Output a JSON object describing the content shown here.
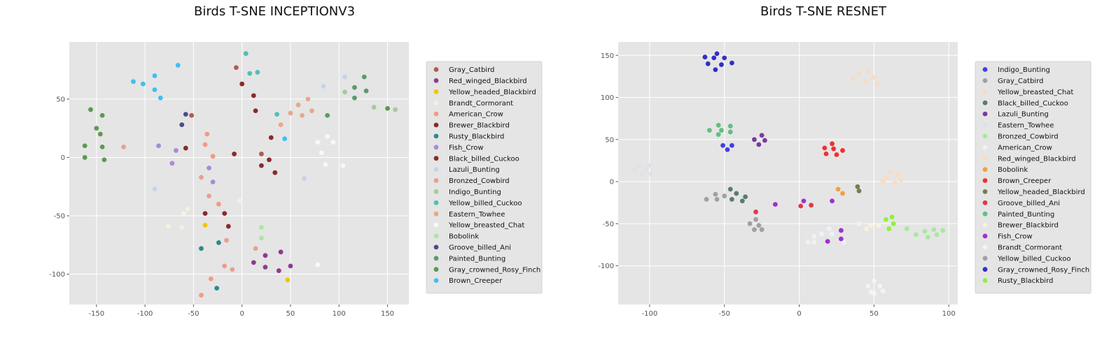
{
  "chart_data": [
    {
      "type": "scatter",
      "title": "Birds T-SNE INCEPTIONV3",
      "xlabel": "",
      "ylabel": "",
      "xlim": [
        -178,
        172
      ],
      "ylim": [
        -126,
        99
      ],
      "xticks": [
        "-150",
        "-100",
        "-50",
        "0",
        "50",
        "100",
        "150"
      ],
      "xtick_values": [
        -150,
        -100,
        -50,
        0,
        50,
        100,
        150
      ],
      "yticks": [
        "-100",
        "-50",
        "0",
        "50"
      ],
      "ytick_values": [
        -100,
        -50,
        0,
        50
      ],
      "grid": true,
      "legend_position": "right",
      "series": [
        {
          "name": "Gray_Catbird",
          "color": "#b35a4f",
          "points": [
            [
              -52,
              36
            ],
            [
              20,
              3
            ],
            [
              -6,
              77
            ]
          ]
        },
        {
          "name": "Red_winged_Blackbird",
          "color": "#8e3a8e",
          "points": [
            [
              12,
              -90
            ],
            [
              24,
              -84
            ],
            [
              40,
              -81
            ],
            [
              50,
              -93
            ],
            [
              38,
              -97
            ],
            [
              24,
              -94
            ]
          ]
        },
        {
          "name": "Yellow_headed_Blackbird",
          "color": "#f2c500",
          "points": [
            [
              -38,
              -58
            ],
            [
              47,
              -105
            ]
          ]
        },
        {
          "name": "Brandt_Cormorant",
          "color": "#f5f0e0",
          "points": [
            [
              -60,
              -48
            ],
            [
              -76,
              -59
            ],
            [
              -56,
              -44
            ],
            [
              -62,
              -60
            ],
            [
              -2,
              -37
            ]
          ]
        },
        {
          "name": "American_Crow",
          "color": "#f29a85",
          "points": [
            [
              -36,
              20
            ],
            [
              -38,
              11
            ],
            [
              -30,
              1
            ],
            [
              -24,
              -40
            ],
            [
              -18,
              -93
            ],
            [
              -42,
              -118
            ],
            [
              -32,
              -104
            ]
          ]
        },
        {
          "name": "Brewer_Blackbird",
          "color": "#8b2a2a",
          "points": [
            [
              -38,
              -48
            ],
            [
              -18,
              -48
            ],
            [
              -14,
              -59
            ],
            [
              -8,
              3
            ],
            [
              14,
              40
            ],
            [
              20,
              -7
            ],
            [
              28,
              -2
            ],
            [
              30,
              17
            ],
            [
              34,
              -13
            ]
          ]
        },
        {
          "name": "Rusty_Blackbird",
          "color": "#2c8a8a",
          "points": [
            [
              -42,
              -78
            ],
            [
              -24,
              -73
            ],
            [
              -26,
              -112
            ]
          ]
        },
        {
          "name": "Fish_Crow",
          "color": "#a88ad8",
          "points": [
            [
              -86,
              10
            ],
            [
              -68,
              6
            ],
            [
              -72,
              -5
            ],
            [
              -34,
              -9
            ],
            [
              -30,
              -21
            ]
          ]
        },
        {
          "name": "Black_billed_Cuckoo",
          "color": "#8b2a2a",
          "points": [
            [
              -58,
              8
            ],
            [
              0,
              63
            ],
            [
              12,
              53
            ]
          ]
        },
        {
          "name": "Lazuli_Bunting",
          "color": "#c5d4e8",
          "points": [
            [
              -90,
              -27
            ],
            [
              64,
              -18
            ],
            [
              84,
              61
            ],
            [
              106,
              69
            ]
          ]
        },
        {
          "name": "Bronzed_Cowbird",
          "color": "#e8a090",
          "points": [
            [
              -122,
              9
            ],
            [
              -42,
              -17
            ],
            [
              -34,
              -33
            ],
            [
              -16,
              -71
            ],
            [
              -10,
              -96
            ],
            [
              14,
              -78
            ]
          ]
        },
        {
          "name": "Indigo_Bunting",
          "color": "#a8c8a0",
          "points": [
            [
              106,
              56
            ],
            [
              136,
              43
            ],
            [
              158,
              41
            ]
          ]
        },
        {
          "name": "Yellow_billed_Cuckoo",
          "color": "#50c0b8",
          "points": [
            [
              4,
              89
            ],
            [
              8,
              72
            ],
            [
              16,
              73
            ],
            [
              36,
              37
            ]
          ]
        },
        {
          "name": "Eastern_Towhee",
          "color": "#e8a888",
          "points": [
            [
              40,
              28
            ],
            [
              50,
              38
            ],
            [
              58,
              45
            ],
            [
              62,
              36
            ],
            [
              68,
              50
            ],
            [
              72,
              40
            ]
          ]
        },
        {
          "name": "Yellow_breasted_Chat",
          "color": "#f8f8f8",
          "points": [
            [
              78,
              13
            ],
            [
              82,
              4
            ],
            [
              88,
              18
            ],
            [
              86,
              -6
            ],
            [
              94,
              13
            ],
            [
              104,
              -7
            ],
            [
              78,
              -92
            ]
          ]
        },
        {
          "name": "Bobolink",
          "color": "#a8e8a0",
          "points": [
            [
              20,
              -60
            ],
            [
              20,
              -69
            ]
          ]
        },
        {
          "name": "Groove_billed_Ani",
          "color": "#4b4b8a",
          "points": [
            [
              -62,
              28
            ],
            [
              -58,
              37
            ]
          ]
        },
        {
          "name": "Painted_Bunting",
          "color": "#5a9a70",
          "points": [
            [
              88,
              36
            ],
            [
              116,
              51
            ],
            [
              116,
              60
            ],
            [
              126,
              69
            ],
            [
              128,
              57
            ]
          ]
        },
        {
          "name": "Gray_crowned_Rosy_Finch",
          "color": "#5a9a50",
          "points": [
            [
              -156,
              41
            ],
            [
              -150,
              25
            ],
            [
              -146,
              20
            ],
            [
              -144,
              9
            ],
            [
              -144,
              36
            ],
            [
              -142,
              -2
            ],
            [
              -162,
              10
            ],
            [
              -162,
              0
            ],
            [
              150,
              42
            ]
          ]
        },
        {
          "name": "Brown_Creeper",
          "color": "#40c0f0",
          "points": [
            [
              -112,
              65
            ],
            [
              -102,
              63
            ],
            [
              -90,
              70
            ],
            [
              -90,
              58
            ],
            [
              -84,
              51
            ],
            [
              -66,
              79
            ],
            [
              44,
              16
            ]
          ]
        }
      ]
    },
    {
      "type": "scatter",
      "title": "Birds T-SNE RESNET",
      "xlabel": "",
      "ylabel": "",
      "xlim": [
        -121,
        106
      ],
      "ylim": [
        -146,
        166
      ],
      "xticks": [
        "-100",
        "-50",
        "0",
        "50",
        "100"
      ],
      "xtick_values": [
        -100,
        -50,
        0,
        50,
        100
      ],
      "yticks": [
        "-100",
        "-50",
        "0",
        "50",
        "100",
        "150"
      ],
      "ytick_values": [
        -100,
        -50,
        0,
        50,
        100,
        150
      ],
      "grid": true,
      "legend_position": "right",
      "series": [
        {
          "name": "Indigo_Bunting",
          "color": "#4040e0",
          "points": [
            [
              -51,
              43
            ],
            [
              -48,
              38
            ],
            [
              -45,
              43
            ]
          ]
        },
        {
          "name": "Gray_Catbird",
          "color": "#a0a0a0",
          "points": [
            [
              -62,
              -21
            ],
            [
              -56,
              -15
            ],
            [
              -55,
              -21
            ],
            [
              -50,
              -17
            ],
            [
              -33,
              -50
            ],
            [
              -30,
              -57
            ],
            [
              -29,
              -45
            ],
            [
              -27,
              -52
            ],
            [
              -25,
              -57
            ]
          ]
        },
        {
          "name": "Yellow_breasted_Chat",
          "color": "#f8dcc0",
          "points": [
            [
              36,
              122
            ],
            [
              40,
              128
            ],
            [
              44,
              119
            ],
            [
              46,
              131
            ],
            [
              50,
              124
            ],
            [
              52,
              116
            ]
          ]
        },
        {
          "name": "Black_billed_Cuckoo",
          "color": "#5a7a70",
          "points": [
            [
              -46,
              -9
            ],
            [
              -45,
              -21
            ],
            [
              -42,
              -14
            ],
            [
              -38,
              -23
            ],
            [
              -36,
              -18
            ]
          ]
        },
        {
          "name": "Lazuli_Bunting",
          "color": "#7a3aa0",
          "points": [
            [
              -30,
              50
            ],
            [
              -27,
              44
            ],
            [
              -25,
              55
            ],
            [
              -23,
              49
            ]
          ]
        },
        {
          "name": "Eastern_Towhee",
          "color": "#e0e0e8",
          "points": [
            [
              -110,
              14
            ],
            [
              -107,
              19
            ],
            [
              -105,
              9
            ],
            [
              -102,
              14
            ],
            [
              -100,
              19
            ],
            [
              -99,
              9
            ]
          ]
        },
        {
          "name": "Bronzed_Cowbird",
          "color": "#a8e8a0",
          "points": [
            [
              72,
              -56
            ],
            [
              78,
              -63
            ],
            [
              84,
              -59
            ],
            [
              86,
              -66
            ],
            [
              90,
              -57
            ],
            [
              92,
              -63
            ],
            [
              96,
              -58
            ]
          ]
        },
        {
          "name": "American_Crow",
          "color": "#f0f0f8",
          "points": [
            [
              6,
              -72
            ],
            [
              10,
              -65
            ],
            [
              10,
              -72
            ],
            [
              15,
              -62
            ],
            [
              20,
              -56
            ],
            [
              22,
              -62
            ],
            [
              30,
              -72
            ]
          ]
        },
        {
          "name": "Red_winged_Blackbird",
          "color": "#fadcc0",
          "points": [
            [
              56,
              0
            ],
            [
              58,
              5
            ],
            [
              61,
              12
            ],
            [
              64,
              -1
            ],
            [
              66,
              8
            ],
            [
              68,
              2
            ]
          ]
        },
        {
          "name": "Bobolink",
          "color": "#f0a040",
          "points": [
            [
              26,
              -9
            ],
            [
              29,
              -14
            ]
          ]
        },
        {
          "name": "Brown_Creeper",
          "color": "#f03030",
          "points": [
            [
              17,
              40
            ],
            [
              18,
              33
            ],
            [
              22,
              45
            ],
            [
              23,
              39
            ],
            [
              25,
              32
            ],
            [
              29,
              37
            ]
          ]
        },
        {
          "name": "Yellow_headed_Blackbird",
          "color": "#708050",
          "points": [
            [
              39,
              -6
            ],
            [
              40,
              -11
            ]
          ]
        },
        {
          "name": "Groove_billed_Ani",
          "color": "#e03850",
          "points": [
            [
              -29,
              -36
            ],
            [
              1,
              -29
            ],
            [
              8,
              -28
            ]
          ]
        },
        {
          "name": "Painted_Bunting",
          "color": "#60c080",
          "points": [
            [
              -60,
              61
            ],
            [
              -54,
              67
            ],
            [
              -54,
              56
            ],
            [
              -52,
              61
            ],
            [
              -46,
              66
            ],
            [
              -46,
              59
            ]
          ]
        },
        {
          "name": "Brewer_Blackbird",
          "color": "#f8f0e0",
          "points": [
            [
              40,
              -50
            ],
            [
              45,
              -56
            ],
            [
              48,
              -52
            ],
            [
              53,
              -52
            ]
          ]
        },
        {
          "name": "Fish_Crow",
          "color": "#a030d0",
          "points": [
            [
              -16,
              -27
            ],
            [
              3,
              -23
            ],
            [
              19,
              -71
            ],
            [
              22,
              -23
            ],
            [
              28,
              -68
            ],
            [
              28,
              -58
            ]
          ]
        },
        {
          "name": "Brandt_Cormorant",
          "color": "#f4f4f4",
          "points": [
            [
              46,
              -124
            ],
            [
              48,
              -131
            ],
            [
              50,
              -118
            ],
            [
              50,
              -133
            ],
            [
              54,
              -124
            ],
            [
              56,
              -130
            ]
          ]
        },
        {
          "name": "Yellow_billed_Cuckoo",
          "color": "#a0a0a0",
          "points": []
        },
        {
          "name": "Gray_crowned_Rosy_Finch",
          "color": "#3030c8",
          "points": [
            [
              -63,
              148
            ],
            [
              -61,
              140
            ],
            [
              -57,
              147
            ],
            [
              -56,
              133
            ],
            [
              -55,
              152
            ],
            [
              -52,
              139
            ],
            [
              -50,
              147
            ],
            [
              -45,
              141
            ]
          ]
        },
        {
          "name": "Rusty_Blackbird",
          "color": "#90f040",
          "points": [
            [
              58,
              -45
            ],
            [
              60,
              -56
            ],
            [
              62,
              -42
            ],
            [
              63,
              -50
            ]
          ]
        }
      ]
    }
  ]
}
